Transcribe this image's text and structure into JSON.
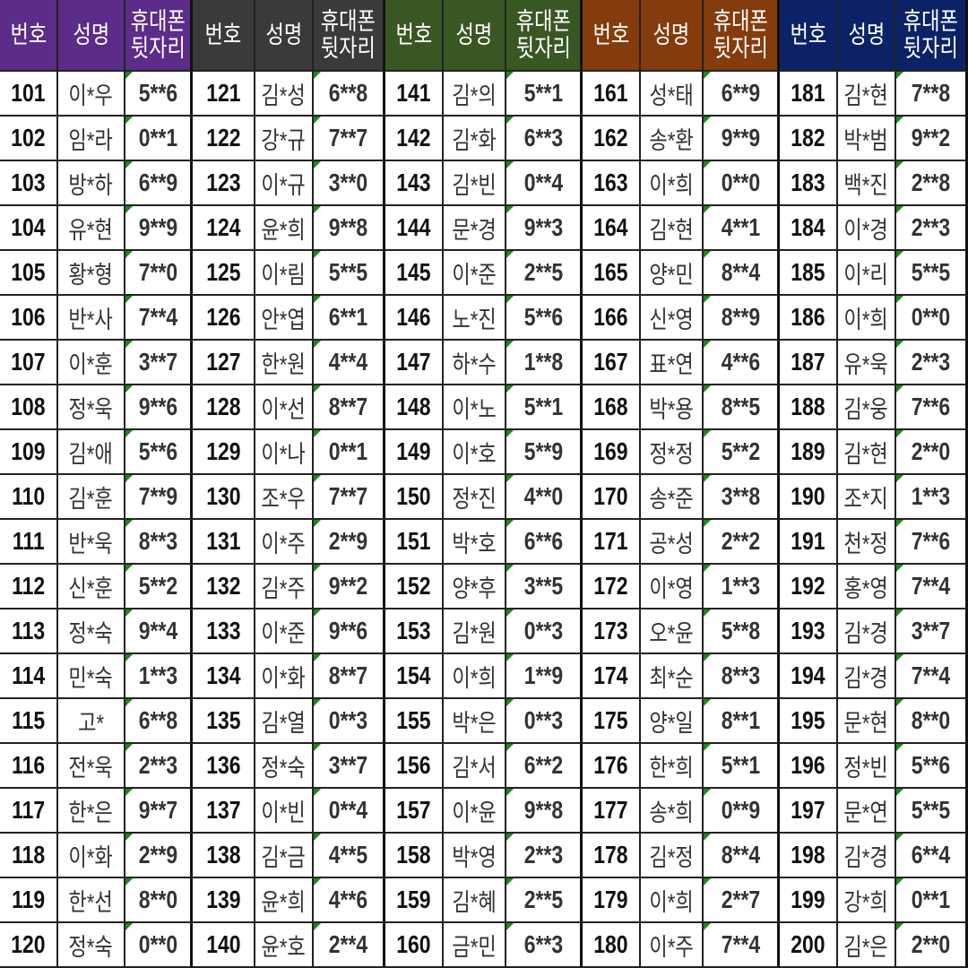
{
  "columns": [
    {
      "lines": [
        "번호"
      ]
    },
    {
      "lines": [
        "성명"
      ]
    },
    {
      "lines": [
        "휴대폰",
        "뒷자리"
      ]
    }
  ],
  "groups": [
    {
      "header_color": "#5B2C8A",
      "rows": [
        [
          "101",
          "이*우",
          "5**6"
        ],
        [
          "102",
          "임*라",
          "0**1"
        ],
        [
          "103",
          "방*하",
          "6**9"
        ],
        [
          "104",
          "유*현",
          "9**9"
        ],
        [
          "105",
          "황*형",
          "7**0"
        ],
        [
          "106",
          "반*사",
          "7**4"
        ],
        [
          "107",
          "이*훈",
          "3**7"
        ],
        [
          "108",
          "정*욱",
          "9**6"
        ],
        [
          "109",
          "김*애",
          "5**6"
        ],
        [
          "110",
          "김*훈",
          "7**9"
        ],
        [
          "111",
          "반*욱",
          "8**3"
        ],
        [
          "112",
          "신*훈",
          "5**2"
        ],
        [
          "113",
          "정*숙",
          "9**4"
        ],
        [
          "114",
          "민*숙",
          "1**3"
        ],
        [
          "115",
          "고*",
          "6**8"
        ],
        [
          "116",
          "전*욱",
          "2**3"
        ],
        [
          "117",
          "한*은",
          "9**7"
        ],
        [
          "118",
          "이*화",
          "2**9"
        ],
        [
          "119",
          "한*선",
          "8**0"
        ],
        [
          "120",
          "정*숙",
          "0**0"
        ]
      ]
    },
    {
      "header_color": "#3A3A3A",
      "rows": [
        [
          "121",
          "김*성",
          "6**8"
        ],
        [
          "122",
          "강*규",
          "7**7"
        ],
        [
          "123",
          "이*규",
          "3**0"
        ],
        [
          "124",
          "윤*희",
          "9**8"
        ],
        [
          "125",
          "이*림",
          "5**5"
        ],
        [
          "126",
          "안*엽",
          "6**1"
        ],
        [
          "127",
          "한*원",
          "4**4"
        ],
        [
          "128",
          "이*선",
          "8**7"
        ],
        [
          "129",
          "이*나",
          "0**1"
        ],
        [
          "130",
          "조*우",
          "7**7"
        ],
        [
          "131",
          "이*주",
          "2**9"
        ],
        [
          "132",
          "김*주",
          "9**2"
        ],
        [
          "133",
          "이*준",
          "9**6"
        ],
        [
          "134",
          "이*화",
          "8**7"
        ],
        [
          "135",
          "김*열",
          "0**3"
        ],
        [
          "136",
          "정*숙",
          "3**7"
        ],
        [
          "137",
          "이*빈",
          "0**4"
        ],
        [
          "138",
          "김*금",
          "4**5"
        ],
        [
          "139",
          "윤*희",
          "4**6"
        ],
        [
          "140",
          "윤*호",
          "2**4"
        ]
      ]
    },
    {
      "header_color": "#385723",
      "rows": [
        [
          "141",
          "김*의",
          "5**1"
        ],
        [
          "142",
          "김*화",
          "6**3"
        ],
        [
          "143",
          "김*빈",
          "0**4"
        ],
        [
          "144",
          "문*경",
          "9**3"
        ],
        [
          "145",
          "이*준",
          "2**5"
        ],
        [
          "146",
          "노*진",
          "5**6"
        ],
        [
          "147",
          "하*수",
          "1**8"
        ],
        [
          "148",
          "이*노",
          "5**1"
        ],
        [
          "149",
          "이*호",
          "5**9"
        ],
        [
          "150",
          "정*진",
          "4**0"
        ],
        [
          "151",
          "박*호",
          "6**6"
        ],
        [
          "152",
          "양*후",
          "3**5"
        ],
        [
          "153",
          "김*원",
          "0**3"
        ],
        [
          "154",
          "이*희",
          "1**9"
        ],
        [
          "155",
          "박*은",
          "0**3"
        ],
        [
          "156",
          "김*서",
          "6**2"
        ],
        [
          "157",
          "이*윤",
          "9**8"
        ],
        [
          "158",
          "박*영",
          "2**3"
        ],
        [
          "159",
          "김*혜",
          "2**5"
        ],
        [
          "160",
          "금*민",
          "6**3"
        ]
      ]
    },
    {
      "header_color": "#843C0C",
      "rows": [
        [
          "161",
          "성*태",
          "6**9"
        ],
        [
          "162",
          "송*환",
          "9**9"
        ],
        [
          "163",
          "이*희",
          "0**0"
        ],
        [
          "164",
          "김*현",
          "4**1"
        ],
        [
          "165",
          "양*민",
          "8**4"
        ],
        [
          "166",
          "신*영",
          "8**9"
        ],
        [
          "167",
          "표*연",
          "4**6"
        ],
        [
          "168",
          "박*용",
          "8**5"
        ],
        [
          "169",
          "정*정",
          "5**2"
        ],
        [
          "170",
          "송*준",
          "3**8"
        ],
        [
          "171",
          "공*성",
          "2**2"
        ],
        [
          "172",
          "이*영",
          "1**3"
        ],
        [
          "173",
          "오*윤",
          "5**8"
        ],
        [
          "174",
          "최*순",
          "8**3"
        ],
        [
          "175",
          "양*일",
          "8**1"
        ],
        [
          "176",
          "한*희",
          "5**1"
        ],
        [
          "177",
          "송*희",
          "0**9"
        ],
        [
          "178",
          "김*정",
          "8**4"
        ],
        [
          "179",
          "이*희",
          "2**7"
        ],
        [
          "180",
          "이*주",
          "7**4"
        ]
      ]
    },
    {
      "header_color": "#0B2366",
      "rows": [
        [
          "181",
          "김*현",
          "7**8"
        ],
        [
          "182",
          "박*범",
          "9**2"
        ],
        [
          "183",
          "백*진",
          "2**8"
        ],
        [
          "184",
          "이*경",
          "2**3"
        ],
        [
          "185",
          "이*리",
          "5**5"
        ],
        [
          "186",
          "이*희",
          "0**0"
        ],
        [
          "187",
          "유*욱",
          "2**3"
        ],
        [
          "188",
          "김*웅",
          "7**6"
        ],
        [
          "189",
          "김*현",
          "2**0"
        ],
        [
          "190",
          "조*지",
          "1**3"
        ],
        [
          "191",
          "천*정",
          "7**6"
        ],
        [
          "192",
          "홍*영",
          "7**4"
        ],
        [
          "193",
          "김*경",
          "3**7"
        ],
        [
          "194",
          "김*경",
          "7**4"
        ],
        [
          "195",
          "문*현",
          "8**0"
        ],
        [
          "196",
          "정*빈",
          "5**6"
        ],
        [
          "197",
          "문*연",
          "5**5"
        ],
        [
          "198",
          "김*경",
          "6**4"
        ],
        [
          "199",
          "강*희",
          "0**1"
        ],
        [
          "200",
          "김*은",
          "2**0"
        ]
      ]
    }
  ]
}
